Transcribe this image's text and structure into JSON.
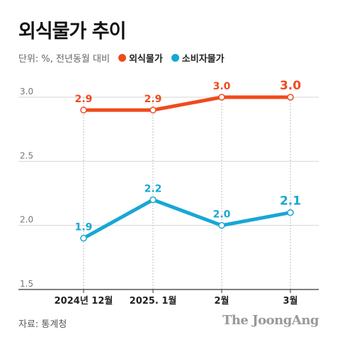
{
  "chart_data": {
    "type": "line",
    "title": "외식물가 추이",
    "unit_note": "단위: %, 전년동월 대비",
    "categories": [
      "2024년 12월",
      "2025. 1월",
      "2월",
      "3월"
    ],
    "yticks": [
      "3.0",
      "2.5",
      "2.0",
      "1.5"
    ],
    "ylim": [
      1.5,
      3.0
    ],
    "grid": true,
    "legend_position": "top-left",
    "series": [
      {
        "name": "외식물가",
        "color": "#f04a1c",
        "values": [
          2.9,
          2.9,
          3.0,
          3.0
        ],
        "labels": [
          "2.9",
          "2.9",
          "3.0",
          "3.0"
        ]
      },
      {
        "name": "소비자물가",
        "color": "#17a7d4",
        "values": [
          1.9,
          2.2,
          2.0,
          2.1
        ],
        "labels": [
          "1.9",
          "2.2",
          "2.0",
          "2.1"
        ]
      }
    ]
  },
  "footer": {
    "source": "자료: 통계청",
    "brand": "The JoongAng"
  }
}
